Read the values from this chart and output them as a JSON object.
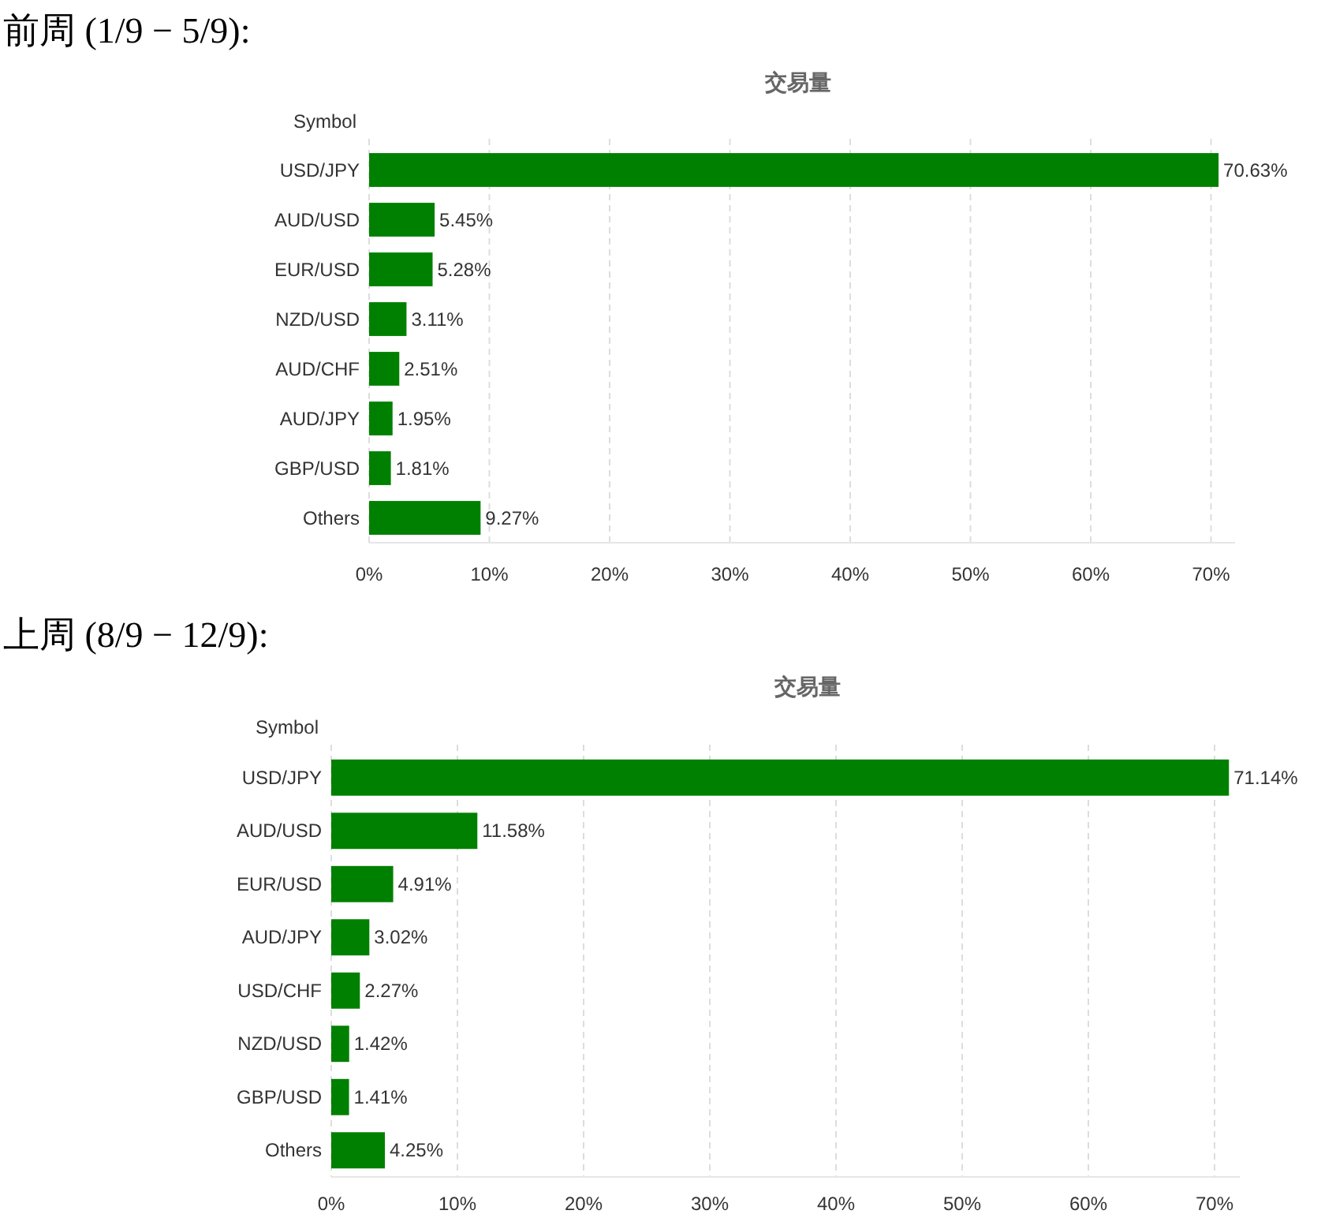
{
  "chart_data": [
    {
      "type": "bar",
      "orientation": "horizontal",
      "title": "前周 (1/9 − 5/9):",
      "subtitle": "交易量",
      "ylabel": "Symbol",
      "grid": "x",
      "categories": [
        "USD/JPY",
        "AUD/USD",
        "EUR/USD",
        "NZD/USD",
        "AUD/CHF",
        "AUD/JPY",
        "GBP/USD",
        "Others"
      ],
      "values": [
        70.63,
        5.45,
        5.28,
        3.11,
        2.51,
        1.95,
        1.81,
        9.27
      ],
      "color": "#008000",
      "value_labels": [
        "70.63%",
        "5.45%",
        "5.28%",
        "3.11%",
        "2.51%",
        "1.95%",
        "1.81%",
        "9.27%"
      ],
      "xlim": [
        0,
        72
      ],
      "xticks": [
        {
          "value": 0,
          "label": "0%"
        },
        {
          "value": 10,
          "label": "10%"
        },
        {
          "value": 20,
          "label": "20%"
        },
        {
          "value": 30,
          "label": "30%"
        },
        {
          "value": 40,
          "label": "40%"
        },
        {
          "value": 50,
          "label": "50%"
        },
        {
          "value": 60,
          "label": "60%"
        },
        {
          "value": 70,
          "label": "70%"
        }
      ]
    },
    {
      "type": "bar",
      "orientation": "horizontal",
      "title": "上周 (8/9 − 12/9):",
      "subtitle": "交易量",
      "ylabel": "Symbol",
      "grid": "x",
      "categories": [
        "USD/JPY",
        "AUD/USD",
        "EUR/USD",
        "AUD/JPY",
        "USD/CHF",
        "NZD/USD",
        "GBP/USD",
        "Others"
      ],
      "values": [
        71.14,
        11.58,
        4.91,
        3.02,
        2.27,
        1.42,
        1.41,
        4.25
      ],
      "color": "#008000",
      "value_labels": [
        "71.14%",
        "11.58%",
        "4.91%",
        "3.02%",
        "2.27%",
        "1.42%",
        "1.41%",
        "4.25%"
      ],
      "xlim": [
        0,
        72
      ],
      "xticks": [
        {
          "value": 0,
          "label": "0%"
        },
        {
          "value": 10,
          "label": "10%"
        },
        {
          "value": 20,
          "label": "20%"
        },
        {
          "value": 30,
          "label": "30%"
        },
        {
          "value": 40,
          "label": "40%"
        },
        {
          "value": 50,
          "label": "50%"
        },
        {
          "value": 60,
          "label": "60%"
        },
        {
          "value": 70,
          "label": "70%"
        }
      ]
    }
  ]
}
